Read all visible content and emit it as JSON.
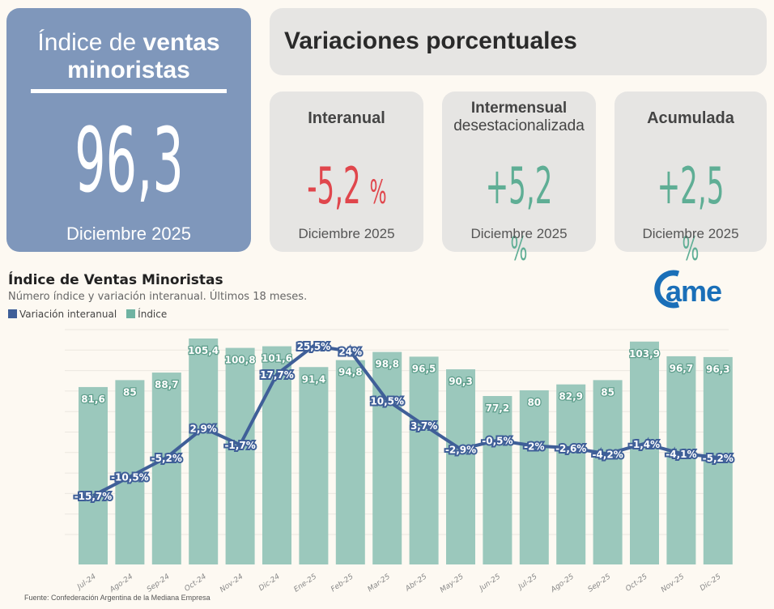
{
  "main": {
    "title_light": "Índice de ",
    "title_bold": "ventas minoristas",
    "value": "96,3",
    "date": "Diciembre 2025",
    "color": "#7f97bb"
  },
  "variations": {
    "title": "Variaciones porcentuales",
    "cards": [
      {
        "label": "Interanual",
        "sub": "",
        "value": "-5,2",
        "unit": "%",
        "date": "Diciembre 2025",
        "color": "#e0464c"
      },
      {
        "label": "Intermensual",
        "sub": "desestacionalizada",
        "value": "+5,2",
        "unit": "%",
        "date": "Diciembre 2025",
        "color": "#5fae95"
      },
      {
        "label": "Acumulada",
        "sub": "",
        "value": "+2,5",
        "unit": "%",
        "date": "Diciembre 2025",
        "color": "#5fae95"
      }
    ]
  },
  "logo": {
    "text": "came",
    "color": "#1a6fb8"
  },
  "chart_data": {
    "type": "bar+line",
    "title": "Índice de Ventas Minoristas",
    "subtitle": "Número índice y variación interanual. Últimos 18 meses.",
    "legend": [
      {
        "name": "Variación interanual",
        "color": "#3f5f98"
      },
      {
        "name": "Índice",
        "color": "#9bc8bc"
      }
    ],
    "legend_placement": "top-left",
    "grid": true,
    "categories": [
      "Jul-24",
      "Ago-24",
      "Sep-24",
      "Oct-24",
      "Nov-24",
      "Dic-24",
      "Ene-25",
      "Feb-25",
      "Mar-25",
      "Abr-25",
      "May-25",
      "Jun-25",
      "Jul-25",
      "Ago-25",
      "Sep-25",
      "Oct-25",
      "Nov-25",
      "Dic-25"
    ],
    "series": [
      {
        "name": "Índice",
        "type": "bar",
        "values": [
          81.6,
          85,
          88.7,
          105.4,
          100.8,
          101.6,
          91.4,
          94.8,
          98.8,
          96.5,
          90.3,
          77.2,
          80,
          82.9,
          85,
          103.9,
          96.7,
          96.3
        ],
        "labels": [
          "81,6",
          "85",
          "88,7",
          "105,4",
          "100,8",
          "101,6",
          "91,4",
          "94,8",
          "98,8",
          "96,5",
          "90,3",
          "77,2",
          "80",
          "82,9",
          "85",
          "103,9",
          "96,7",
          "96,3"
        ]
      },
      {
        "name": "Variación interanual",
        "type": "line",
        "values": [
          -15.7,
          -10.5,
          -5.2,
          2.9,
          -1.7,
          17.7,
          25.5,
          24,
          10.5,
          3.7,
          -2.9,
          -0.5,
          -2,
          -2.6,
          -4.2,
          -1.4,
          -4.1,
          -5.2
        ],
        "labels": [
          "-15,7%",
          "-10,5%",
          "-5,2%",
          "2,9%",
          "-1,7%",
          "17,7%",
          "25,5%",
          "24%",
          "10,5%",
          "3,7%",
          "-2,9%",
          "-0,5%",
          "-2%",
          "-2,6%",
          "-4,2%",
          "-1,4%",
          "-4,1%",
          "-5,2%"
        ]
      }
    ],
    "source": "Fuente: Confederación Argentina de la Mediana Empresa"
  }
}
